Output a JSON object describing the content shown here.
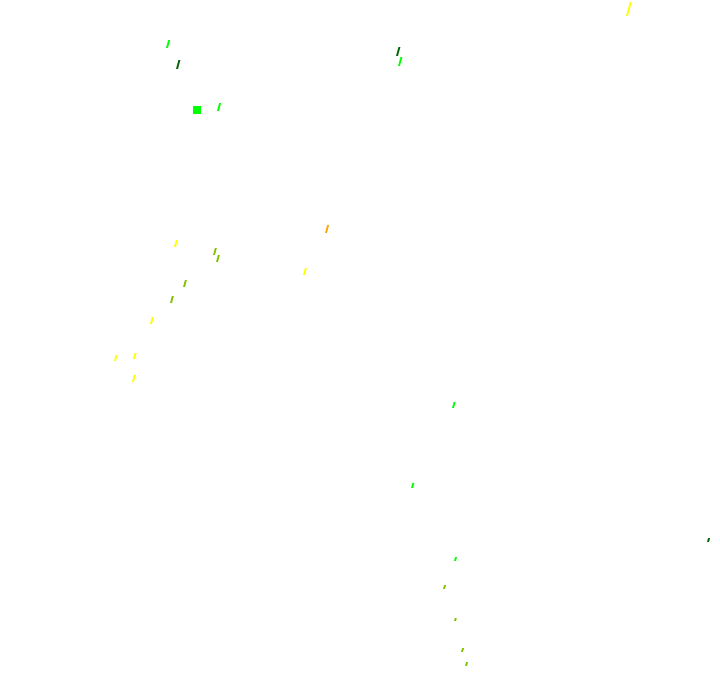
{
  "palette": {
    "background": "#ffffff",
    "yellow": "#ffff00",
    "lime": "#00ff00",
    "dark_green": "#006400",
    "olive": "#80c000",
    "orange": "#ffa500"
  }
}
